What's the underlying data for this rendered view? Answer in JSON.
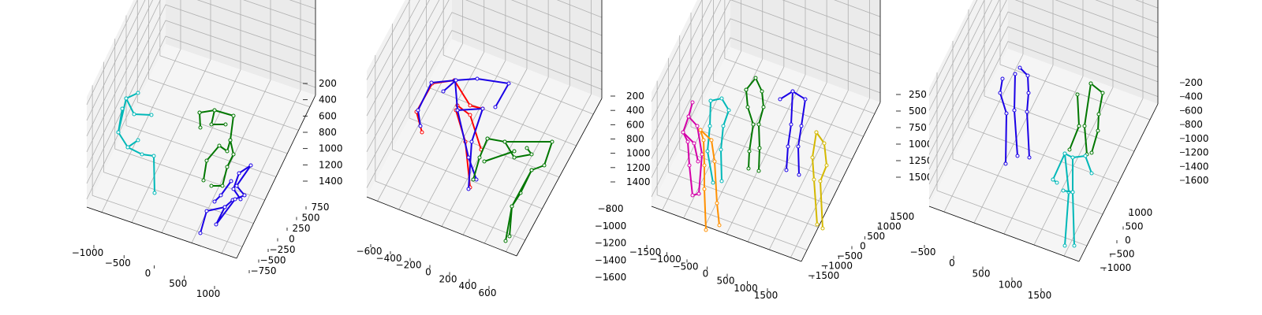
{
  "chart_data": [
    {
      "type": "3d-skeleton",
      "ticks": {
        "x": [
          "−1000",
          "−500",
          "0",
          "500",
          "1000"
        ],
        "y": [
          "750",
          "500",
          "250",
          "0",
          "−250",
          "−500",
          "−750"
        ],
        "z": [
          "1400",
          "1200",
          "1000",
          "800",
          "600",
          "400",
          "200"
        ]
      },
      "series": [
        {
          "color": "#00b8b8"
        },
        {
          "color": "#007700"
        },
        {
          "color": "#1a00e6"
        }
      ]
    },
    {
      "type": "3d-skeleton",
      "ticks": {
        "x": [
          "−600",
          "−400",
          "−200",
          "0",
          "200",
          "400",
          "600"
        ],
        "y": [
          "−800",
          "−1000",
          "−1200",
          "−1400",
          "−1600"
        ],
        "z": [
          "1400",
          "1200",
          "1000",
          "800",
          "600",
          "400",
          "200"
        ]
      },
      "series": [
        {
          "color": "#ff0000"
        },
        {
          "color": "#1a00e6"
        },
        {
          "color": "#007700"
        }
      ]
    },
    {
      "type": "3d-skeleton",
      "ticks": {
        "x": [
          "−1500",
          "−1000",
          "−500",
          "0",
          "500",
          "1000",
          "1500"
        ],
        "y": [
          "1500",
          "1000",
          "500",
          "0",
          "−500",
          "−1000",
          "−1500"
        ],
        "z": [
          "1500",
          "1250",
          "1000",
          "750",
          "500",
          "250"
        ]
      },
      "series": [
        {
          "color": "#d400a8"
        },
        {
          "color": "#00b8b8"
        },
        {
          "color": "#ff9000"
        },
        {
          "color": "#007700"
        },
        {
          "color": "#1a00e6"
        },
        {
          "color": "#d4b800"
        }
      ]
    },
    {
      "type": "3d-skeleton",
      "ticks": {
        "x": [
          "−500",
          "0",
          "500",
          "1000",
          "1500"
        ],
        "y": [
          "1000",
          "500",
          "0",
          "−500",
          "−1000"
        ],
        "z": [
          "1600",
          "1400",
          "1200",
          "1000",
          "800",
          "600",
          "400",
          "200"
        ]
      },
      "series": [
        {
          "color": "#1a00e6"
        },
        {
          "color": "#007700"
        },
        {
          "color": "#00b8b8"
        }
      ]
    }
  ]
}
